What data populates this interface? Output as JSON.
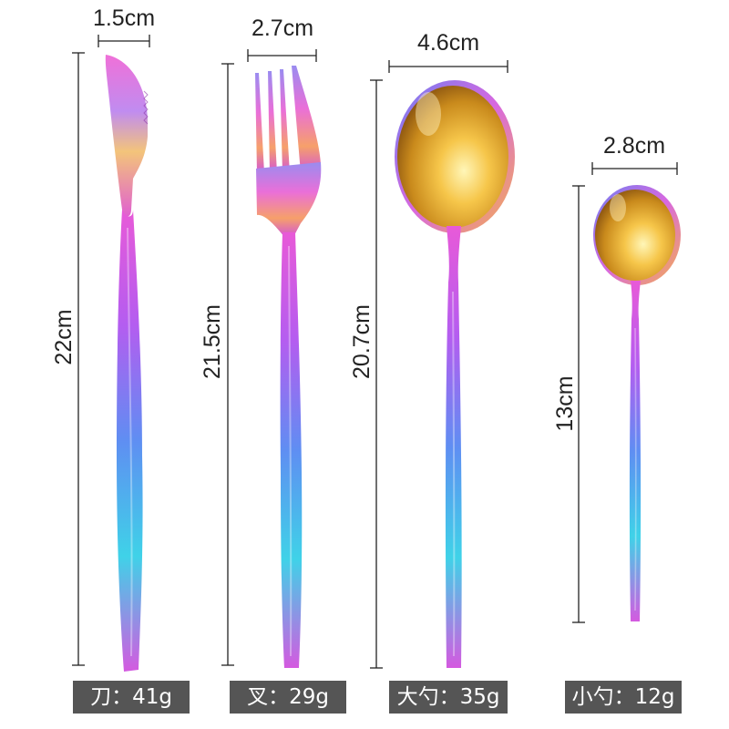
{
  "colors": {
    "background": "#ffffff",
    "dimension_line": "#222222",
    "label_bg": "#555555",
    "label_text": "#ffffff",
    "rainbow": [
      "#e85ad8",
      "#b45df0",
      "#5f8ef2",
      "#3fd2e8",
      "#d45ae0"
    ],
    "gold": [
      "#fff6b8",
      "#f6c64a",
      "#c98a1c",
      "#8a5410"
    ]
  },
  "items": [
    {
      "icon": "knife-icon",
      "width_text": "1.5cm",
      "length_text": "22cm",
      "label": "刀：41g"
    },
    {
      "icon": "fork-icon",
      "width_text": "2.7cm",
      "length_text": "21.5cm",
      "label": "叉：29g"
    },
    {
      "icon": "large-spoon-icon",
      "width_text": "4.6cm",
      "length_text": "20.7cm",
      "label": "大勺：35g"
    },
    {
      "icon": "small-spoon-icon",
      "width_text": "2.8cm",
      "length_text": "13cm",
      "label": "小勺：12g"
    }
  ]
}
